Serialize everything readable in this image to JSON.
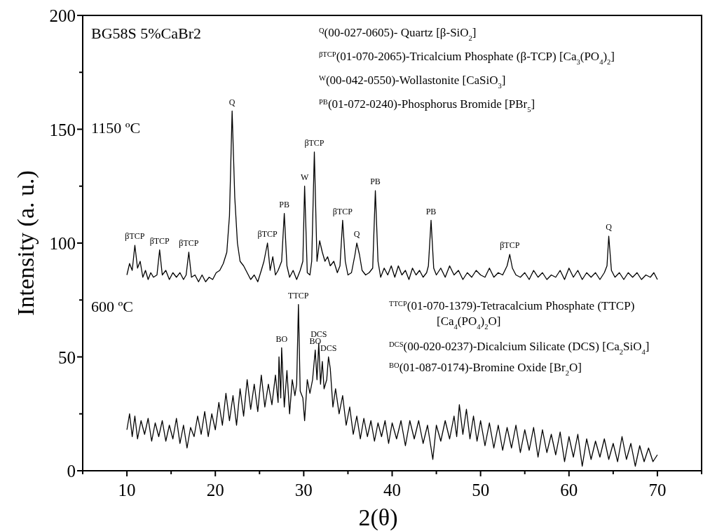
{
  "chart_data": {
    "type": "line",
    "xlabel": "2(θ)",
    "ylabel": "Intensity (a. u.)",
    "xlim": [
      5,
      75
    ],
    "ylim": [
      0,
      200
    ],
    "xticks": [
      {
        "value": 5,
        "label": null
      },
      10,
      {
        "value": 15,
        "label": null
      },
      20,
      {
        "value": 25,
        "label": null
      },
      30,
      {
        "value": 35,
        "label": null
      },
      40,
      {
        "value": 45,
        "label": null
      },
      50,
      {
        "value": 55,
        "label": null
      },
      60,
      {
        "value": 65,
        "label": null
      },
      70,
      {
        "value": 75,
        "label": null
      }
    ],
    "yticks": [
      0,
      {
        "value": 25,
        "label": null
      },
      50,
      {
        "value": 75,
        "label": null
      },
      100,
      {
        "value": 125,
        "label": null
      },
      150,
      {
        "value": 175,
        "label": null
      },
      200
    ],
    "grid": false,
    "marker": "none",
    "line_style": "solid",
    "series": [
      {
        "color": "#000000",
        "x": [
          10,
          10.3,
          10.6,
          10.9,
          11.2,
          11.5,
          11.8,
          12.1,
          12.4,
          12.7,
          13.0,
          13.4,
          13.7,
          14.0,
          14.4,
          14.8,
          15.2,
          15.6,
          16.0,
          16.4,
          16.7,
          17.0,
          17.3,
          17.7,
          18.1,
          18.5,
          18.9,
          19.3,
          19.7,
          20.1,
          20.5,
          20.9,
          21.3,
          21.6,
          21.9,
          22.2,
          22.5,
          22.8,
          23.2,
          23.6,
          24.0,
          24.4,
          24.8,
          25.2,
          25.5,
          25.9,
          26.2,
          26.5,
          26.8,
          27.1,
          27.5,
          27.8,
          28.1,
          28.4,
          28.8,
          29.2,
          29.6,
          29.9,
          30.1,
          30.4,
          30.7,
          30.9,
          31.2,
          31.5,
          31.8,
          32.1,
          32.4,
          32.7,
          33.0,
          33.4,
          33.8,
          34.1,
          34.4,
          34.7,
          35.0,
          35.4,
          35.8,
          36.0,
          36.3,
          36.6,
          37.0,
          37.4,
          37.8,
          38.1,
          38.4,
          38.7,
          39.1,
          39.5,
          39.9,
          40.3,
          40.7,
          41.1,
          41.5,
          41.9,
          42.3,
          42.7,
          43.1,
          43.5,
          43.9,
          44.1,
          44.4,
          44.7,
          45.0,
          45.5,
          46.0,
          46.5,
          47.0,
          47.5,
          48.0,
          48.5,
          49.0,
          49.5,
          50.0,
          50.5,
          51.0,
          51.5,
          52.0,
          52.5,
          53.0,
          53.3,
          53.6,
          54.0,
          54.5,
          55.0,
          55.5,
          56.0,
          56.5,
          57.0,
          57.5,
          58.0,
          58.5,
          59.0,
          59.5,
          60.0,
          60.5,
          61.0,
          61.5,
          62.0,
          62.5,
          63.0,
          63.5,
          64.0,
          64.3,
          64.5,
          64.8,
          65.2,
          65.7,
          66.2,
          66.7,
          67.2,
          67.7,
          68.2,
          68.7,
          69.2,
          69.6,
          70.0
        ],
        "values": [
          86,
          91,
          88,
          99,
          89,
          92,
          85,
          88,
          84,
          87,
          85,
          86,
          97,
          86,
          88,
          84,
          87,
          85,
          87,
          84,
          86,
          96,
          85,
          86,
          83,
          86,
          83,
          85,
          84,
          87,
          88,
          91,
          96,
          112,
          158,
          120,
          100,
          92,
          90,
          87,
          84,
          86,
          83,
          88,
          92,
          100,
          88,
          94,
          86,
          88,
          92,
          113,
          90,
          85,
          88,
          84,
          88,
          92,
          125,
          87,
          86,
          92,
          140,
          92,
          101,
          96,
          92,
          94,
          90,
          92,
          87,
          90,
          110,
          92,
          86,
          87,
          95,
          100,
          95,
          88,
          86,
          87,
          89,
          123,
          92,
          85,
          89,
          86,
          90,
          85,
          90,
          86,
          88,
          84,
          89,
          86,
          88,
          85,
          87,
          90,
          110,
          89,
          86,
          89,
          85,
          90,
          86,
          88,
          84,
          87,
          85,
          88,
          86,
          85,
          89,
          85,
          87,
          86,
          90,
          95,
          89,
          86,
          85,
          87,
          84,
          88,
          85,
          87,
          84,
          86,
          85,
          88,
          84,
          89,
          85,
          88,
          84,
          87,
          85,
          87,
          84,
          87,
          90,
          103,
          88,
          85,
          87,
          84,
          87,
          85,
          87,
          84,
          86,
          85,
          87,
          84
        ]
      },
      {
        "color": "#000000",
        "x": [
          10,
          10.3,
          10.6,
          10.9,
          11.2,
          11.6,
          12.0,
          12.4,
          12.8,
          13.2,
          13.6,
          14.0,
          14.4,
          14.8,
          15.2,
          15.6,
          16.0,
          16.4,
          16.8,
          17.2,
          17.6,
          18.0,
          18.4,
          18.8,
          19.2,
          19.6,
          20.0,
          20.4,
          20.8,
          21.2,
          21.6,
          22.0,
          22.4,
          22.8,
          23.2,
          23.6,
          24.0,
          24.4,
          24.8,
          25.2,
          25.6,
          26.0,
          26.4,
          26.8,
          27.1,
          27.2,
          27.4,
          27.5,
          27.8,
          28.1,
          28.4,
          28.7,
          29.0,
          29.2,
          29.4,
          29.6,
          29.9,
          30.1,
          30.4,
          30.7,
          31.0,
          31.3,
          31.5,
          31.7,
          31.9,
          32.1,
          32.3,
          32.6,
          32.8,
          33.0,
          33.3,
          33.6,
          34.0,
          34.4,
          34.8,
          35.2,
          35.6,
          36.0,
          36.4,
          36.8,
          37.2,
          37.6,
          38.0,
          38.4,
          38.8,
          39.2,
          39.6,
          40.0,
          40.5,
          41.0,
          41.5,
          42.0,
          42.5,
          43.0,
          43.5,
          44.0,
          44.6,
          45.0,
          45.5,
          46.0,
          46.5,
          47.0,
          47.3,
          47.6,
          48.0,
          48.4,
          48.8,
          49.2,
          49.6,
          50.0,
          50.5,
          51.0,
          51.5,
          52.0,
          52.5,
          53.0,
          53.5,
          54.0,
          54.5,
          55.0,
          55.5,
          56.0,
          56.5,
          57.0,
          57.5,
          58.0,
          58.5,
          59.0,
          59.5,
          60.0,
          60.5,
          61.0,
          61.5,
          62.0,
          62.5,
          63.0,
          63.5,
          64.0,
          64.5,
          65.0,
          65.5,
          66.0,
          66.5,
          67.0,
          67.5,
          68.0,
          68.5,
          69.0,
          69.5,
          70.0
        ],
        "values": [
          18,
          25,
          15,
          24,
          14,
          22,
          16,
          23,
          13,
          21,
          15,
          22,
          13,
          20,
          14,
          23,
          12,
          20,
          10,
          19,
          15,
          24,
          16,
          26,
          15,
          25,
          18,
          30,
          20,
          34,
          22,
          33,
          20,
          36,
          24,
          40,
          27,
          38,
          26,
          42,
          28,
          38,
          29,
          42,
          30,
          50,
          32,
          54,
          28,
          44,
          25,
          40,
          33,
          38,
          73,
          35,
          32,
          22,
          40,
          34,
          40,
          53,
          40,
          56,
          38,
          48,
          36,
          40,
          50,
          45,
          28,
          36,
          25,
          33,
          20,
          28,
          16,
          24,
          14,
          23,
          15,
          22,
          13,
          21,
          15,
          22,
          12,
          21,
          14,
          22,
          11,
          22,
          14,
          22,
          12,
          20,
          5,
          20,
          13,
          22,
          14,
          24,
          15,
          29,
          16,
          27,
          14,
          24,
          13,
          22,
          11,
          21,
          10,
          20,
          9,
          19,
          10,
          20,
          8,
          18,
          9,
          19,
          6,
          18,
          8,
          16,
          7,
          17,
          4,
          15,
          6,
          16,
          2,
          14,
          5,
          13,
          6,
          14,
          5,
          12,
          4,
          15,
          5,
          12,
          2,
          11,
          4,
          10,
          4,
          7
        ]
      }
    ],
    "annotations": [
      "BG58S 5%CaBr2",
      "$^{Q}$(00-027-0605)- Quartz [β-SiO$_{2}$]",
      "$^{βTCP}$(01-070-2065)-Tricalcium Phosphate (β-TCP) [Ca$_{3}$(PO$_{4}$)$_{2}$]",
      "$^{W}$(00-042-0550)-Wollastonite [CaSiO$_{3}$]",
      "$^{PB}$(01-072-0240)-Phosphorus Bromide [PBr$_{5}$]",
      "1150 ºC",
      "600 ºC",
      "$^{TTCP}$(01-070-1379)-Tetracalcium Phosphate (TTCP)",
      "[Ca$_{4}$(PO$_{4}$)$_{2}$O]",
      "$^{DCS}$(00-020-0237)-Dicalcium Silicate (DCS) [Ca$_{2}$SiO$_{4}$]",
      "$^{BO}$(01-087-0174)-Bromine Oxide [Br$_{2}$O]",
      {
        "text": "βTCP",
        "x": 10.9,
        "y": 99
      },
      {
        "text": "βTCP",
        "x": 13.7,
        "y": 97
      },
      {
        "text": "βTCP",
        "x": 17.0,
        "y": 96
      },
      {
        "text": "Q",
        "x": 21.9,
        "y": 158
      },
      {
        "text": "βTCP",
        "x": 25.9,
        "y": 100
      },
      {
        "text": "PB",
        "x": 27.8,
        "y": 113
      },
      {
        "text": "W",
        "x": 30.1,
        "y": 125
      },
      {
        "text": "βTCP",
        "x": 31.2,
        "y": 140
      },
      {
        "text": "βTCP",
        "x": 34.4,
        "y": 110
      },
      {
        "text": "Q",
        "x": 36.0,
        "y": 100
      },
      {
        "text": "PB",
        "x": 38.1,
        "y": 123
      },
      {
        "text": "PB",
        "x": 44.4,
        "y": 110
      },
      {
        "text": "βTCP",
        "x": 53.3,
        "y": 95
      },
      {
        "text": "Q",
        "x": 64.5,
        "y": 103
      },
      {
        "text": "BO",
        "x": 27.5,
        "y": 54
      },
      {
        "text": "TTCP",
        "x": 29.4,
        "y": 73
      },
      {
        "text": "BO",
        "x": 31.3,
        "y": 53
      },
      {
        "text": "DCS",
        "x": 31.7,
        "y": 56
      },
      {
        "text": "DCS",
        "x": 32.8,
        "y": 50
      }
    ]
  }
}
